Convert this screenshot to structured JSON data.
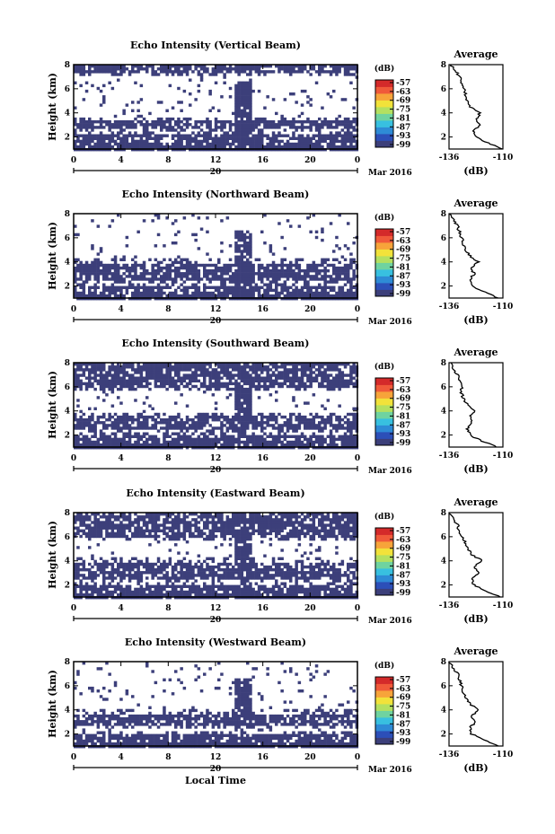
{
  "figure": {
    "date_label": "Mar 2016",
    "xlabel": "Local Time",
    "ylabel": "Height (km)",
    "colorbar_unit": "(dB)",
    "profile_title": "Average",
    "profile_xlabel": "(dB)",
    "fill_color": "#3c3f7a",
    "colormap": [
      "#3c3f7a",
      "#2c4fb8",
      "#2e8bd6",
      "#38c0e0",
      "#6fd3a0",
      "#b4e060",
      "#f2e23a",
      "#f7a43a",
      "#f05a3a",
      "#d42a2a"
    ]
  },
  "chart_data": [
    {
      "type": "heatmap",
      "title": "Echo Intensity (Vertical Beam)",
      "xlabel": "",
      "ylabel": "Height (km)",
      "xlim": [
        0,
        24
      ],
      "ylim": [
        1,
        8
      ],
      "x_ticks": [
        "0",
        "4",
        "8",
        "12",
        "16",
        "20",
        "0"
      ],
      "x_day_label": "20",
      "y_ticks": [
        "2",
        "4",
        "6",
        "8"
      ],
      "colorbar_ticks": [
        "-57",
        "-63",
        "-69",
        "-75",
        "-81",
        "-87",
        "-93",
        "-99"
      ],
      "profile": {
        "title": "Average",
        "xlim": [
          -136,
          -110
        ],
        "x_ticks": [
          "-136",
          "-110"
        ],
        "y_ticks": [
          "2",
          "4",
          "6",
          "8"
        ],
        "height_km": [
          1.0,
          1.5,
          2.0,
          2.5,
          3.0,
          3.5,
          4.0,
          4.5,
          5.0,
          5.5,
          6.0,
          6.5,
          7.0,
          7.5,
          8.0
        ],
        "db": [
          -110,
          -117,
          -123,
          -124,
          -121,
          -123,
          -121,
          -126,
          -127,
          -128,
          -129,
          -130,
          -131,
          -133,
          -135
        ]
      },
      "echo_bands": [
        {
          "height_km": [
            1.0,
            2.2
          ]
        },
        {
          "height_km": [
            2.6,
            3.3
          ]
        },
        {
          "height_km": [
            7.4,
            8.0
          ]
        }
      ],
      "convective_column": {
        "local_time_h": [
          13.5,
          15.0
        ],
        "height_km": [
          1.0,
          6.5
        ]
      }
    },
    {
      "type": "heatmap",
      "title": "Echo Intensity (Northward Beam)",
      "xlabel": "",
      "ylabel": "Height (km)",
      "xlim": [
        0,
        24
      ],
      "ylim": [
        1,
        8
      ],
      "x_ticks": [
        "0",
        "4",
        "8",
        "12",
        "16",
        "20",
        "0"
      ],
      "x_day_label": "20",
      "y_ticks": [
        "2",
        "4",
        "6",
        "8"
      ],
      "colorbar_ticks": [
        "-57",
        "-63",
        "-69",
        "-75",
        "-81",
        "-87",
        "-93",
        "-99"
      ],
      "profile": {
        "title": "Average",
        "xlim": [
          -136,
          -110
        ],
        "x_ticks": [
          "-136",
          "-110"
        ],
        "y_ticks": [
          "2",
          "4",
          "6",
          "8"
        ],
        "height_km": [
          1.0,
          1.5,
          2.0,
          2.5,
          3.0,
          3.5,
          4.0,
          4.5,
          5.0,
          5.5,
          6.0,
          6.5,
          7.0,
          7.5,
          8.0
        ],
        "db": [
          -112,
          -119,
          -125,
          -126,
          -124,
          -125,
          -122,
          -126,
          -128,
          -129,
          -130,
          -131,
          -132,
          -134,
          -136
        ]
      },
      "echo_bands": [
        {
          "height_km": [
            1.0,
            2.0
          ]
        },
        {
          "height_km": [
            2.5,
            3.8
          ]
        }
      ],
      "convective_column": {
        "local_time_h": [
          13.5,
          15.0
        ],
        "height_km": [
          1.0,
          6.5
        ]
      }
    },
    {
      "type": "heatmap",
      "title": "Echo Intensity (Southward Beam)",
      "xlabel": "",
      "ylabel": "Height (km)",
      "xlim": [
        0,
        24
      ],
      "ylim": [
        1,
        8
      ],
      "x_ticks": [
        "0",
        "4",
        "8",
        "12",
        "16",
        "20",
        "0"
      ],
      "x_day_label": "20",
      "y_ticks": [
        "2",
        "4",
        "6",
        "8"
      ],
      "colorbar_ticks": [
        "-57",
        "-63",
        "-69",
        "-75",
        "-81",
        "-87",
        "-93",
        "-99"
      ],
      "profile": {
        "title": "Average",
        "xlim": [
          -136,
          -110
        ],
        "x_ticks": [
          "-136",
          "-110"
        ],
        "y_ticks": [
          "2",
          "4",
          "6",
          "8"
        ],
        "height_km": [
          1.0,
          1.5,
          2.0,
          2.5,
          3.0,
          3.5,
          4.0,
          4.5,
          5.0,
          5.5,
          6.0,
          6.5,
          7.0,
          7.5,
          8.0
        ],
        "db": [
          -113,
          -120,
          -126,
          -127,
          -125,
          -126,
          -123,
          -127,
          -129,
          -130,
          -130,
          -131,
          -132,
          -134,
          -135
        ]
      },
      "echo_bands": [
        {
          "height_km": [
            1.0,
            2.0
          ]
        },
        {
          "height_km": [
            2.5,
            3.5
          ]
        },
        {
          "height_km": [
            6.0,
            8.0
          ]
        }
      ],
      "convective_column": {
        "local_time_h": [
          13.5,
          15.0
        ],
        "height_km": [
          2.5,
          8.0
        ]
      }
    },
    {
      "type": "heatmap",
      "title": "Echo Intensity (Eastward Beam)",
      "xlabel": "",
      "ylabel": "Height (km)",
      "xlim": [
        0,
        24
      ],
      "ylim": [
        1,
        8
      ],
      "x_ticks": [
        "0",
        "4",
        "8",
        "12",
        "16",
        "20",
        "0"
      ],
      "x_day_label": "20",
      "y_ticks": [
        "2",
        "4",
        "6",
        "8"
      ],
      "colorbar_ticks": [
        "-57",
        "-63",
        "-69",
        "-75",
        "-81",
        "-87",
        "-93",
        "-99"
      ],
      "profile": {
        "title": "Average",
        "xlim": [
          -136,
          -110
        ],
        "x_ticks": [
          "-136",
          "-110"
        ],
        "y_ticks": [
          "2",
          "4",
          "6",
          "8"
        ],
        "height_km": [
          1.0,
          1.5,
          2.0,
          2.5,
          3.0,
          3.5,
          4.0,
          4.5,
          5.0,
          5.5,
          6.0,
          6.5,
          7.0,
          7.5,
          8.0
        ],
        "db": [
          -111,
          -118,
          -124,
          -125,
          -122,
          -124,
          -120,
          -125,
          -127,
          -128,
          -130,
          -131,
          -132,
          -134,
          -136
        ]
      },
      "echo_bands": [
        {
          "height_km": [
            1.0,
            2.0
          ]
        },
        {
          "height_km": [
            2.5,
            3.8
          ]
        },
        {
          "height_km": [
            6.0,
            8.0
          ]
        }
      ],
      "convective_column": {
        "local_time_h": [
          13.5,
          15.0
        ],
        "height_km": [
          3.0,
          8.0
        ]
      }
    },
    {
      "type": "heatmap",
      "title": "Echo Intensity (Westward Beam)",
      "xlabel": "Local Time",
      "ylabel": "Height (km)",
      "xlim": [
        0,
        24
      ],
      "ylim": [
        1,
        8
      ],
      "x_ticks": [
        "0",
        "4",
        "8",
        "12",
        "16",
        "20",
        "0"
      ],
      "x_day_label": "20",
      "y_ticks": [
        "2",
        "4",
        "6",
        "8"
      ],
      "colorbar_ticks": [
        "-57",
        "-63",
        "-69",
        "-75",
        "-81",
        "-87",
        "-93",
        "-99"
      ],
      "profile": {
        "title": "Average",
        "xlim": [
          -136,
          -110
        ],
        "x_ticks": [
          "-136",
          "-110"
        ],
        "y_ticks": [
          "2",
          "4",
          "6",
          "8"
        ],
        "height_km": [
          1.0,
          1.5,
          2.0,
          2.5,
          3.0,
          3.5,
          4.0,
          4.5,
          5.0,
          5.5,
          6.0,
          6.5,
          7.0,
          7.5,
          8.0
        ],
        "db": [
          -112,
          -119,
          -125,
          -126,
          -123,
          -125,
          -122,
          -126,
          -128,
          -129,
          -130,
          -131,
          -132,
          -134,
          -136
        ]
      },
      "echo_bands": [
        {
          "height_km": [
            1.0,
            1.9
          ]
        },
        {
          "height_km": [
            2.8,
            3.6
          ]
        }
      ],
      "convective_column": {
        "local_time_h": [
          13.5,
          15.0
        ],
        "height_km": [
          3.0,
          6.5
        ]
      }
    }
  ]
}
